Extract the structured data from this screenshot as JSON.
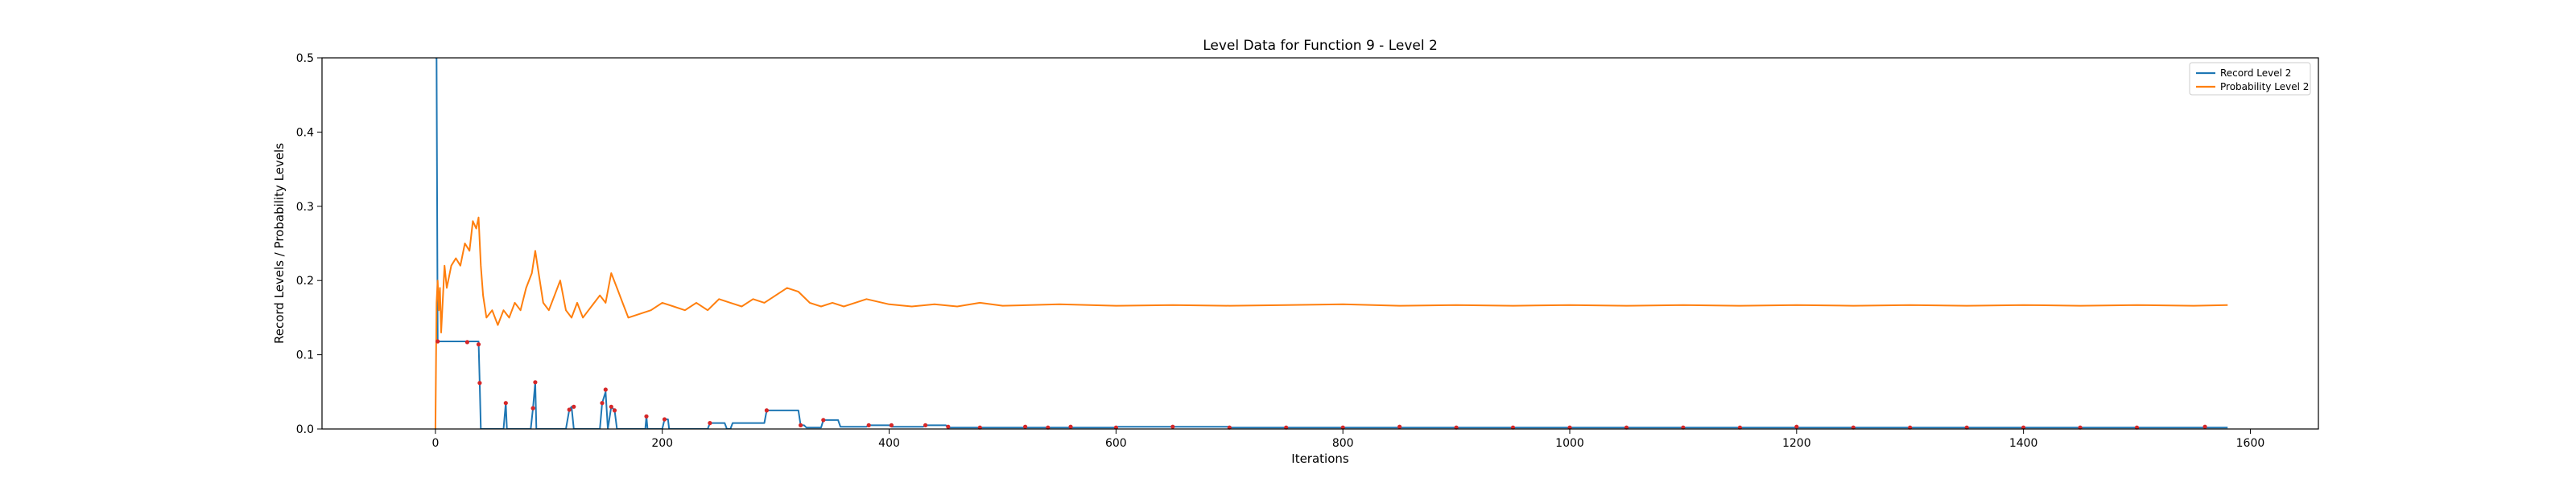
{
  "chart_data": {
    "type": "line",
    "title": "Level Data for Function 9 - Level 2",
    "xlabel": "Iterations",
    "ylabel": "Record Levels / Probability Levels",
    "xlim": [
      -100,
      1660
    ],
    "ylim": [
      0,
      0.5
    ],
    "xticks": [
      0,
      200,
      400,
      600,
      800,
      1000,
      1200,
      1400,
      1600
    ],
    "yticks": [
      0.0,
      0.1,
      0.2,
      0.3,
      0.4,
      0.5
    ],
    "xtick_labels": [
      "0",
      "200",
      "400",
      "600",
      "800",
      "1000",
      "1200",
      "1400",
      "1600"
    ],
    "ytick_labels": [
      "0.0",
      "0.1",
      "0.2",
      "0.3",
      "0.4",
      "0.5"
    ],
    "grid": false,
    "legend_position": "top-right",
    "series": [
      {
        "name": "Record Level 2",
        "color": "#1f77b4",
        "x": [
          0,
          1,
          2,
          3,
          38,
          39,
          40,
          41,
          60,
          62,
          63,
          84,
          86,
          88,
          89,
          100,
          115,
          118,
          120,
          122,
          145,
          147,
          150,
          152,
          155,
          158,
          160,
          162,
          163,
          185,
          186,
          187,
          200,
          202,
          205,
          206,
          240,
          242,
          255,
          257,
          260,
          262,
          290,
          292,
          320,
          322,
          325,
          327,
          340,
          342,
          355,
          357,
          358,
          380,
          382,
          400,
          402,
          430,
          432,
          450,
          452,
          500,
          502,
          600,
          602,
          700,
          702,
          800,
          802,
          900,
          902,
          1000,
          1002,
          1100,
          1102,
          1200,
          1202,
          1300,
          1302,
          1400,
          1402,
          1500,
          1502,
          1580
        ],
        "y": [
          0.5,
          0.5,
          0.118,
          0.118,
          0.118,
          0.062,
          0.0,
          0.0,
          0.0,
          0.035,
          0.0,
          0.0,
          0.028,
          0.063,
          0.0,
          0.0,
          0.0,
          0.026,
          0.03,
          0.0,
          0.0,
          0.035,
          0.05,
          0.0,
          0.03,
          0.025,
          0.0,
          0.0,
          0.0,
          0.0,
          0.017,
          0.0,
          0.0,
          0.013,
          0.013,
          0.0,
          0.0,
          0.008,
          0.008,
          0.0,
          0.0,
          0.008,
          0.008,
          0.025,
          0.025,
          0.005,
          0.005,
          0.002,
          0.002,
          0.012,
          0.012,
          0.003,
          0.003,
          0.003,
          0.005,
          0.005,
          0.003,
          0.003,
          0.005,
          0.005,
          0.002,
          0.002,
          0.002,
          0.002,
          0.003,
          0.003,
          0.002,
          0.002,
          0.002,
          0.002,
          0.002,
          0.002,
          0.002,
          0.002,
          0.002,
          0.002,
          0.002,
          0.002,
          0.002,
          0.002,
          0.002,
          0.002,
          0.002,
          0.002
        ],
        "markers": {
          "color": "#d62728",
          "x": [
            2,
            28,
            38,
            39,
            62,
            86,
            88,
            118,
            122,
            147,
            150,
            155,
            158,
            186,
            202,
            242,
            292,
            322,
            342,
            382,
            402,
            432,
            452,
            480,
            520,
            540,
            560,
            600,
            650,
            700,
            750,
            800,
            850,
            900,
            950,
            1000,
            1050,
            1100,
            1150,
            1200,
            1250,
            1300,
            1350,
            1400,
            1450,
            1500,
            1560
          ],
          "y": [
            0.118,
            0.117,
            0.114,
            0.062,
            0.035,
            0.028,
            0.063,
            0.026,
            0.03,
            0.035,
            0.053,
            0.03,
            0.025,
            0.017,
            0.013,
            0.008,
            0.025,
            0.005,
            0.012,
            0.005,
            0.005,
            0.005,
            0.003,
            0.002,
            0.003,
            0.002,
            0.003,
            0.002,
            0.003,
            0.002,
            0.002,
            0.002,
            0.003,
            0.002,
            0.002,
            0.002,
            0.002,
            0.002,
            0.002,
            0.003,
            0.002,
            0.002,
            0.002,
            0.002,
            0.002,
            0.002,
            0.003
          ]
        }
      },
      {
        "name": "Probability Level 2",
        "color": "#ff7f0e",
        "x": [
          0,
          1,
          2,
          3,
          4,
          5,
          8,
          10,
          14,
          18,
          22,
          26,
          30,
          33,
          36,
          38,
          40,
          42,
          45,
          50,
          55,
          60,
          65,
          70,
          75,
          80,
          85,
          88,
          90,
          95,
          100,
          105,
          110,
          115,
          120,
          125,
          130,
          135,
          140,
          145,
          150,
          155,
          160,
          165,
          170,
          180,
          190,
          200,
          210,
          220,
          230,
          240,
          250,
          260,
          270,
          280,
          290,
          300,
          310,
          320,
          330,
          340,
          350,
          360,
          370,
          380,
          400,
          420,
          440,
          460,
          480,
          500,
          550,
          600,
          650,
          700,
          750,
          800,
          850,
          900,
          950,
          1000,
          1050,
          1100,
          1150,
          1200,
          1250,
          1300,
          1350,
          1400,
          1450,
          1500,
          1550,
          1580
        ],
        "y": [
          0.0,
          0.17,
          0.2,
          0.16,
          0.19,
          0.13,
          0.22,
          0.19,
          0.22,
          0.23,
          0.22,
          0.25,
          0.24,
          0.28,
          0.27,
          0.285,
          0.22,
          0.18,
          0.15,
          0.16,
          0.14,
          0.16,
          0.15,
          0.17,
          0.16,
          0.19,
          0.21,
          0.24,
          0.22,
          0.17,
          0.16,
          0.18,
          0.2,
          0.16,
          0.15,
          0.17,
          0.15,
          0.16,
          0.17,
          0.18,
          0.17,
          0.21,
          0.19,
          0.17,
          0.15,
          0.155,
          0.16,
          0.17,
          0.165,
          0.16,
          0.17,
          0.16,
          0.175,
          0.17,
          0.165,
          0.175,
          0.17,
          0.18,
          0.19,
          0.185,
          0.17,
          0.165,
          0.17,
          0.165,
          0.17,
          0.175,
          0.168,
          0.165,
          0.168,
          0.165,
          0.17,
          0.166,
          0.168,
          0.166,
          0.167,
          0.166,
          0.167,
          0.168,
          0.166,
          0.167,
          0.166,
          0.167,
          0.166,
          0.167,
          0.166,
          0.167,
          0.166,
          0.167,
          0.166,
          0.167,
          0.166,
          0.167,
          0.166,
          0.167
        ]
      }
    ]
  }
}
